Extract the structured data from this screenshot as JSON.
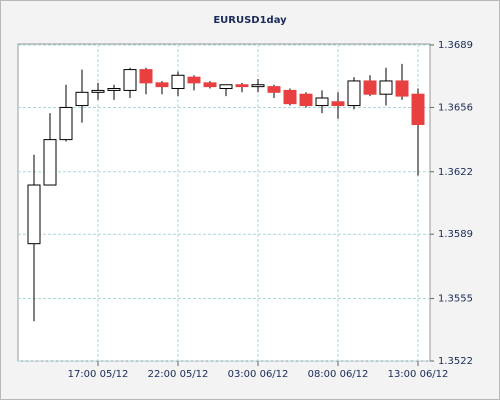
{
  "chart_data": {
    "type": "candlestick",
    "title": "EURUSD1day",
    "categories": [
      null,
      null,
      null,
      null,
      "17:00 05/12",
      null,
      null,
      null,
      null,
      "22:00 05/12",
      null,
      null,
      null,
      null,
      "03:00 06/12",
      null,
      null,
      null,
      null,
      "08:00 06/12",
      null,
      null,
      null,
      null,
      "13:00 06/12"
    ],
    "open": [
      1.3584,
      1.3615,
      1.3639,
      1.3657,
      1.3664,
      1.3665,
      1.3665,
      1.3676,
      1.3669,
      1.3666,
      1.3672,
      1.3669,
      1.3666,
      1.3668,
      1.3667,
      1.3667,
      1.3665,
      1.3663,
      1.3657,
      1.3659,
      1.3657,
      1.367,
      1.3663,
      1.367,
      1.3663
    ],
    "high": [
      1.3631,
      1.3653,
      1.3668,
      1.3676,
      1.3669,
      1.3668,
      1.3677,
      1.3677,
      1.367,
      1.3675,
      1.3673,
      1.367,
      1.3668,
      1.3669,
      1.3671,
      1.3668,
      1.3666,
      1.3664,
      1.3665,
      1.3664,
      1.3672,
      1.3673,
      1.3677,
      1.3679,
      1.3666
    ],
    "low": [
      1.3543,
      1.3615,
      1.3638,
      1.3648,
      1.366,
      1.366,
      1.3661,
      1.3663,
      1.3663,
      1.3662,
      1.3665,
      1.3666,
      1.3662,
      1.3664,
      1.3664,
      1.3661,
      1.3657,
      1.3656,
      1.3653,
      1.365,
      1.3655,
      1.3662,
      1.3657,
      1.366,
      1.362
    ],
    "close": [
      1.3615,
      1.3639,
      1.3656,
      1.3664,
      1.3665,
      1.3666,
      1.3676,
      1.3669,
      1.3667,
      1.3673,
      1.3669,
      1.3667,
      1.3668,
      1.3667,
      1.3668,
      1.3664,
      1.3658,
      1.3657,
      1.3661,
      1.3657,
      1.367,
      1.3663,
      1.367,
      1.3662,
      1.3647
    ],
    "up_color": "#ffffff",
    "down_color": "#e84040",
    "ylim": [
      1.3522,
      1.3689
    ],
    "yticks": [
      1.3522,
      1.3555,
      1.3589,
      1.3622,
      1.3656,
      1.3689
    ],
    "grid": true
  }
}
